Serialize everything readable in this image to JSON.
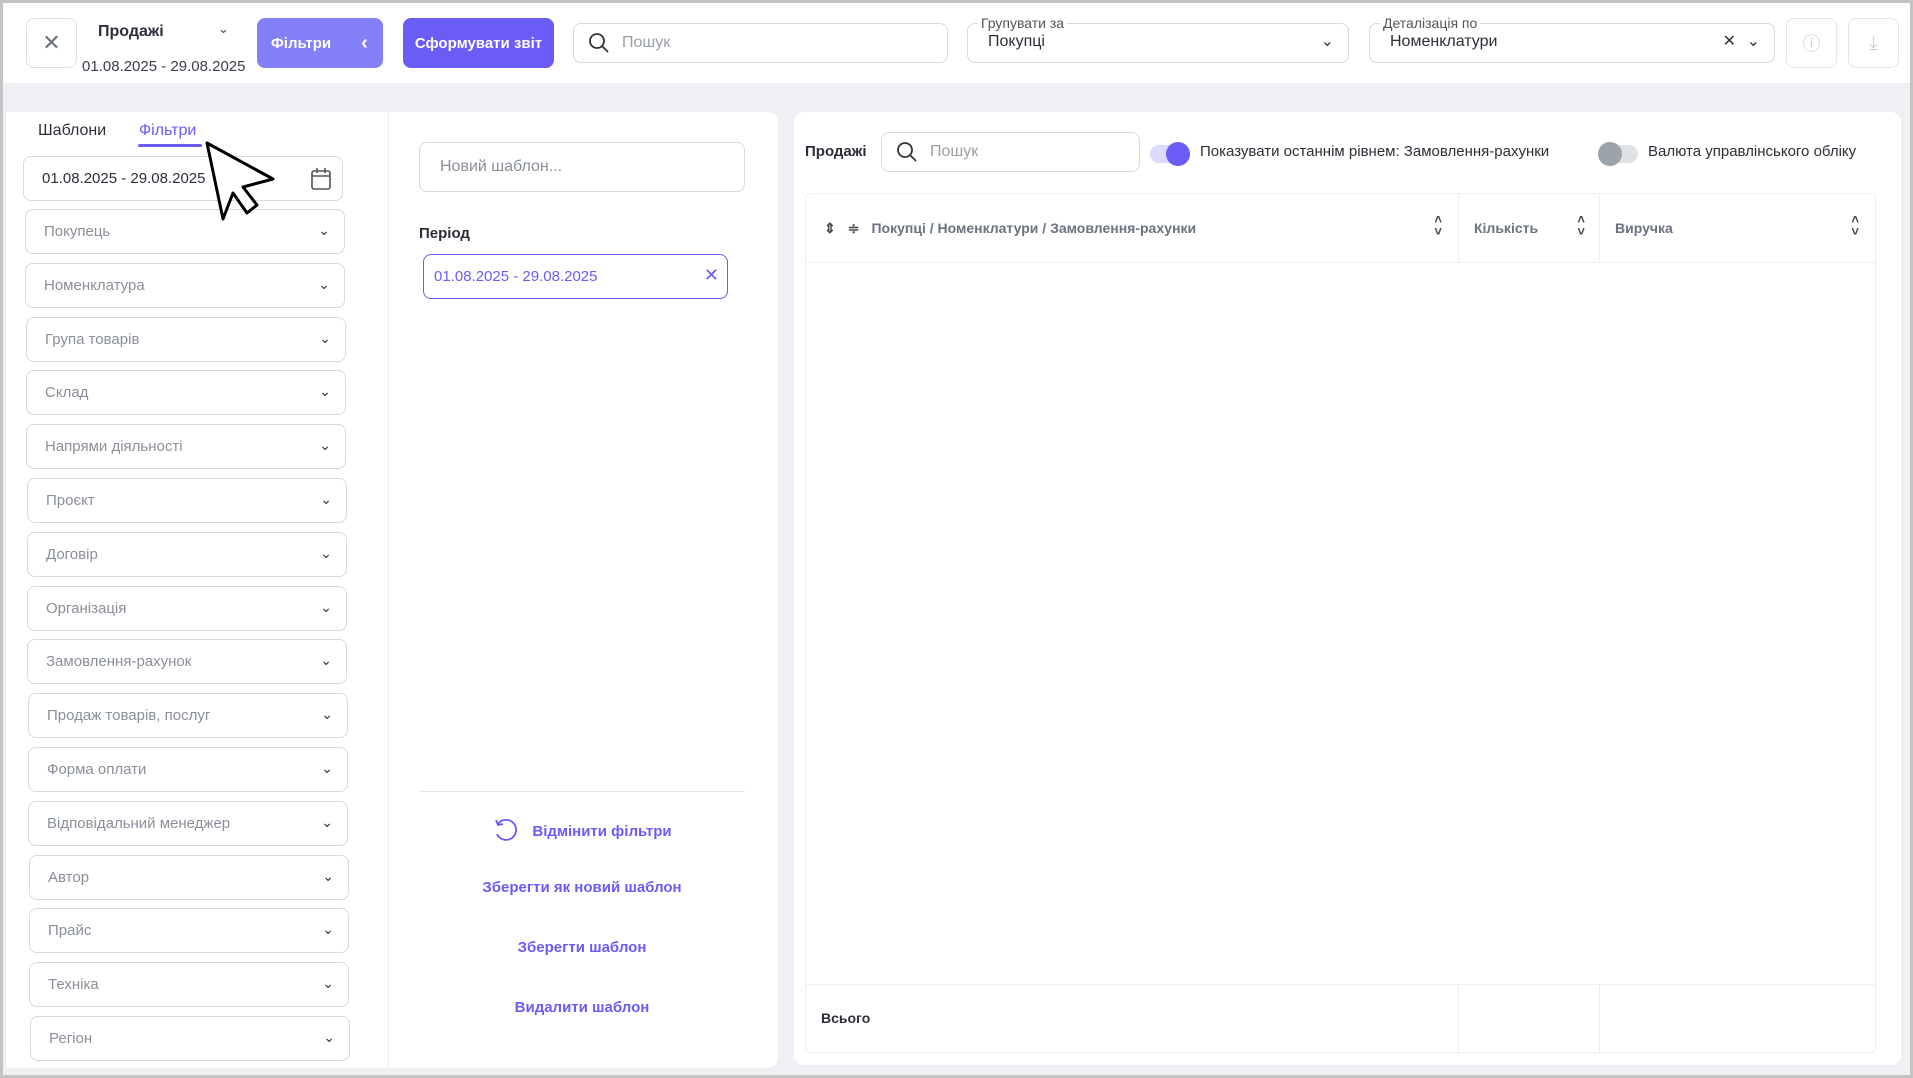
{
  "header": {
    "title": "Продажі",
    "date_range": "01.08.2025 - 29.08.2025",
    "filters_label": "Фільтри",
    "generate_label": "Сформувати звіт",
    "search_placeholder": "Пошук",
    "group_by": {
      "label": "Групувати за",
      "value": "Покупці"
    },
    "detail_by": {
      "label": "Деталізація по",
      "value": "Номенклатури"
    }
  },
  "left": {
    "tabs": [
      {
        "label": "Шаблони",
        "active": false
      },
      {
        "label": "Фільтри",
        "active": true
      }
    ],
    "date_value": "01.08.2025 - 29.08.2025",
    "filters": [
      "Покупець",
      "Номенклатура",
      "Група товарів",
      "Склад",
      "Напрями діяльності",
      "Проєкт",
      "Договір",
      "Організація",
      "Замовлення-рахунок",
      "Продаж товарів, послуг",
      "Форма оплати",
      "Відповідальний менеджер",
      "Автор",
      "Прайс",
      "Техніка",
      "Регіон"
    ]
  },
  "templates": {
    "new_placeholder": "Новий шаблон...",
    "period_label": "Період",
    "period_value": "01.08.2025 - 29.08.2025",
    "reset_label": "Відмінити фільтри",
    "save_new_label": "Зберегти як новий шаблон",
    "save_label": "Зберегти шаблон",
    "delete_label": "Видалити шаблон"
  },
  "report": {
    "title": "Продажі",
    "search_placeholder": "Пошук",
    "toggle_last_level": {
      "label": "Показувати останнім рівнем: Замовлення-рахунки",
      "on": true
    },
    "toggle_currency": {
      "label": "Валюта управлінського обліку",
      "on": false
    },
    "columns": [
      "Покупці / Номенклатури / Замовлення-рахунки",
      "Кількість",
      "Виручка"
    ],
    "total_label": "Всього"
  },
  "colors": {
    "accent": "#6b5cf6",
    "filters_button": "#8480f8"
  }
}
